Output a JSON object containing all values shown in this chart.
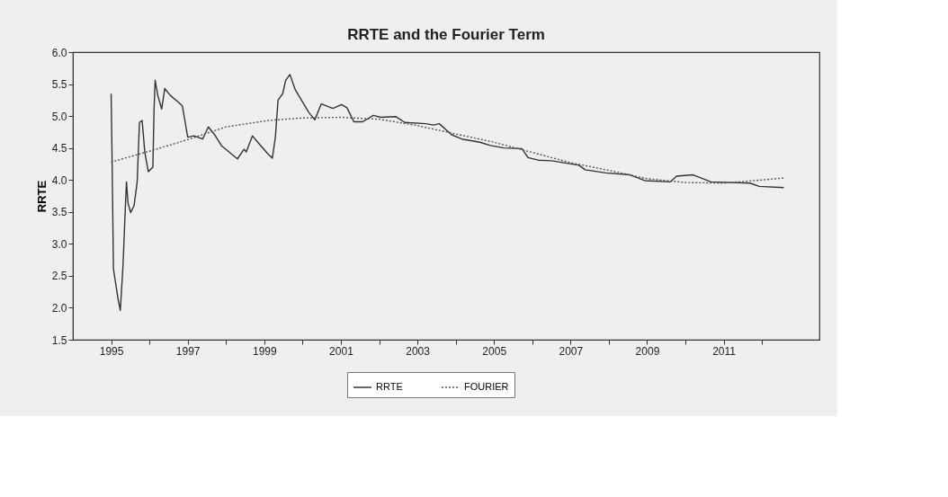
{
  "chart_data": {
    "type": "line",
    "title": "RRTE and the Fourier Term",
    "ylabel": "RRTE",
    "xlim": [
      1994,
      2013.5
    ],
    "xticks": [
      1995,
      {
        "value": 1996,
        "label": null
      },
      1997,
      {
        "value": 1998,
        "label": null
      },
      1999,
      {
        "value": 2000,
        "label": null
      },
      2001,
      {
        "value": 2002,
        "label": null
      },
      2003,
      {
        "value": 2004,
        "label": null
      },
      2005,
      {
        "value": 2006,
        "label": null
      },
      2007,
      {
        "value": 2008,
        "label": null
      },
      2009,
      {
        "value": 2010,
        "label": null
      },
      2011,
      {
        "value": 2012,
        "label": null
      }
    ],
    "ylim": [
      1.5,
      6.0
    ],
    "yticks": [
      {
        "value": 1.5,
        "label": "1.5"
      },
      {
        "value": 2.0,
        "label": "2.0"
      },
      2.5,
      {
        "value": 3.0,
        "label": "3.0"
      },
      3.5,
      {
        "value": 4.0,
        "label": "4.0"
      },
      4.5,
      {
        "value": 5.0,
        "label": "5.0"
      },
      5.5,
      {
        "value": 6.0,
        "label": "6.0"
      }
    ],
    "grid": false,
    "legend": "bottom",
    "marker": "none",
    "series": [
      {
        "name": "RRTE",
        "color": "#333333",
        "line_style": "solid",
        "x": [
          1995.0,
          1995.02,
          1995.04,
          1995.06,
          1995.18,
          1995.24,
          1995.31,
          1995.37,
          1995.4,
          1995.44,
          1995.51,
          1995.6,
          1995.68,
          1995.74,
          1995.81,
          1995.88,
          1995.97,
          1996.09,
          1996.12,
          1996.15,
          1996.22,
          1996.32,
          1996.4,
          1996.55,
          1996.73,
          1996.86,
          1996.92,
          1997.0,
          1997.16,
          1997.39,
          1997.54,
          1997.7,
          1997.89,
          1998.3,
          1998.47,
          1998.53,
          1998.69,
          1998.86,
          1999.09,
          1999.21,
          1999.29,
          1999.36,
          1999.48,
          1999.56,
          1999.67,
          1999.81,
          2000.16,
          2000.32,
          2000.49,
          2000.79,
          2001.02,
          2001.16,
          2001.34,
          2001.57,
          2001.85,
          2002.04,
          2002.44,
          2002.67,
          2003.22,
          2003.42,
          2003.57,
          2003.89,
          2004.16,
          2004.63,
          2004.91,
          2005.26,
          2005.73,
          2005.89,
          2006.16,
          2006.51,
          2007.22,
          2007.38,
          2007.92,
          2008.55,
          2008.94,
          2009.61,
          2009.77,
          2010.2,
          2010.67,
          2011.69,
          2011.93,
          2012.57
        ],
        "values": [
          5.35,
          4.53,
          3.6,
          2.61,
          2.14,
          1.96,
          2.66,
          3.55,
          3.97,
          3.64,
          3.49,
          3.6,
          3.97,
          4.9,
          4.93,
          4.43,
          4.13,
          4.2,
          5.09,
          5.56,
          5.32,
          5.11,
          5.43,
          5.32,
          5.23,
          5.16,
          4.95,
          4.67,
          4.69,
          4.64,
          4.83,
          4.71,
          4.53,
          4.33,
          4.48,
          4.44,
          4.69,
          4.57,
          4.41,
          4.34,
          4.67,
          5.25,
          5.35,
          5.56,
          5.65,
          5.41,
          5.06,
          4.94,
          5.19,
          5.12,
          5.18,
          5.13,
          4.91,
          4.91,
          5.01,
          4.98,
          4.99,
          4.9,
          4.88,
          4.86,
          4.88,
          4.71,
          4.64,
          4.59,
          4.54,
          4.5,
          4.49,
          4.35,
          4.31,
          4.3,
          4.23,
          4.16,
          4.11,
          4.08,
          3.99,
          3.97,
          4.06,
          4.08,
          3.97,
          3.95,
          3.9,
          3.88
        ]
      },
      {
        "name": "FOURIER",
        "color": "#555555",
        "line_style": "dotted",
        "x": [
          1995.0,
          1996.0,
          1997.0,
          1998.0,
          1999.1,
          2000.0,
          2001.0,
          2002.0,
          2003.0,
          2004.0,
          2005.0,
          2006.0,
          2007.0,
          2008.0,
          2009.0,
          2010.0,
          2011.0,
          2012.0,
          2012.57
        ],
        "values": [
          4.28,
          4.45,
          4.63,
          4.83,
          4.93,
          4.97,
          4.98,
          4.95,
          4.85,
          4.72,
          4.59,
          4.43,
          4.27,
          4.15,
          4.02,
          3.96,
          3.95,
          4.0,
          4.03
        ]
      }
    ]
  }
}
